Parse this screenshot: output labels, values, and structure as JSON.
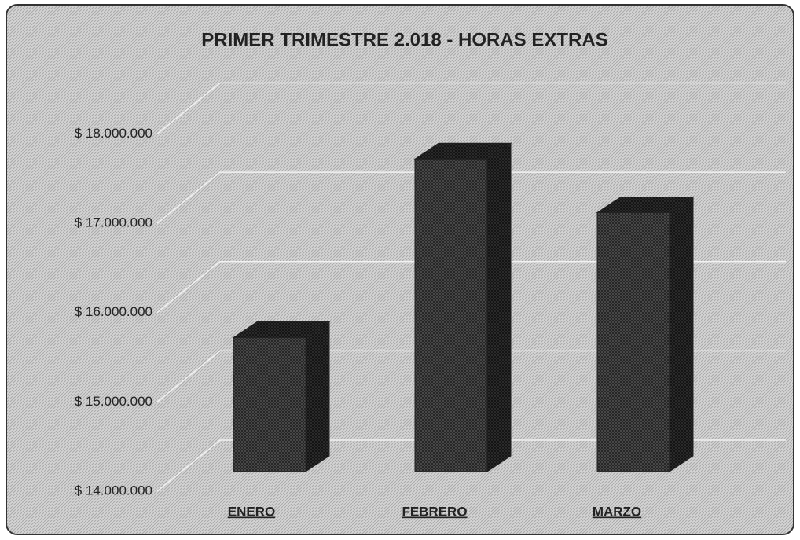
{
  "chart_data": {
    "type": "bar3d",
    "title": "PRIMER TRIMESTRE 2.018 - HORAS EXTRAS",
    "categories": [
      "ENERO",
      "FEBRERO",
      "MARZO"
    ],
    "values": [
      15500000,
      17500000,
      16900000
    ],
    "color": "#3a3a3a",
    "ylim": [
      14000000,
      18400000
    ],
    "yticks": [
      {
        "value": 14000000,
        "label": "$ 14.000.000"
      },
      {
        "value": 15000000,
        "label": "$ 15.000.000"
      },
      {
        "value": 16000000,
        "label": "$ 16.000.000"
      },
      {
        "value": 17000000,
        "label": "$ 17.000.000"
      },
      {
        "value": 18000000,
        "label": "$ 18.000.000"
      }
    ],
    "grid": true
  }
}
